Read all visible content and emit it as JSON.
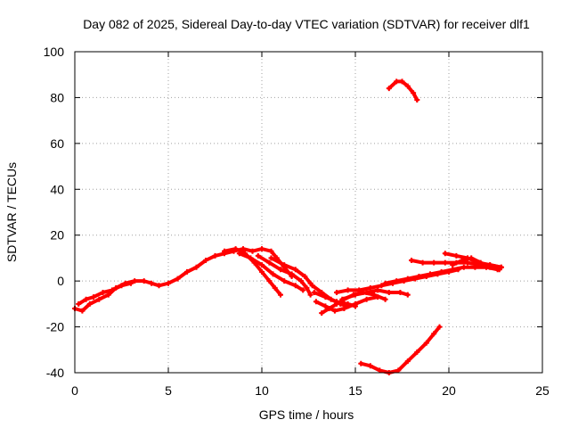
{
  "chart_data": {
    "type": "line",
    "title": "Day 082 of 2025, Sidereal Day-to-day VTEC variation (SDTVAR) for receiver dlf1",
    "xlabel": "GPS time / hours",
    "ylabel": "SDTVAR / TECUs",
    "xlim": [
      0,
      25
    ],
    "ylim": [
      -40,
      100
    ],
    "xticks": [
      0,
      5,
      10,
      15,
      20,
      25
    ],
    "yticks": [
      -40,
      -20,
      0,
      20,
      40,
      60,
      80,
      100
    ],
    "grid": true,
    "legend": "none",
    "color": "#ff0000",
    "series": [
      {
        "name": "track-1",
        "points": [
          [
            0.0,
            -12
          ],
          [
            0.4,
            -13
          ],
          [
            0.8,
            -10
          ],
          [
            1.3,
            -8
          ],
          [
            1.8,
            -6
          ],
          [
            2.2,
            -3
          ],
          [
            2.7,
            -1
          ],
          [
            3.2,
            0
          ],
          [
            3.7,
            0
          ],
          [
            4.1,
            -1
          ],
          [
            4.5,
            -2
          ],
          [
            5.0,
            -1
          ],
          [
            5.5,
            1
          ],
          [
            6.0,
            4
          ],
          [
            6.5,
            6
          ],
          [
            7.0,
            9
          ],
          [
            7.5,
            11
          ],
          [
            8.0,
            12
          ],
          [
            8.5,
            13
          ],
          [
            9.0,
            14
          ],
          [
            9.5,
            13
          ],
          [
            10.0,
            14
          ],
          [
            10.5,
            13
          ],
          [
            10.8,
            10
          ],
          [
            11.2,
            6
          ],
          [
            11.6,
            2
          ]
        ]
      },
      {
        "name": "track-2",
        "points": [
          [
            0.2,
            -10
          ],
          [
            0.6,
            -8
          ],
          [
            1.0,
            -7
          ],
          [
            1.5,
            -5
          ],
          [
            2.0,
            -4
          ],
          [
            2.5,
            -2
          ],
          [
            3.0,
            -1
          ]
        ]
      },
      {
        "name": "track-3",
        "points": [
          [
            8.0,
            13
          ],
          [
            8.6,
            14
          ],
          [
            9.1,
            12
          ],
          [
            9.6,
            8
          ],
          [
            10.0,
            4
          ],
          [
            10.4,
            0
          ],
          [
            10.7,
            -3
          ],
          [
            11.0,
            -6
          ]
        ]
      },
      {
        "name": "track-4",
        "points": [
          [
            8.8,
            12
          ],
          [
            9.4,
            10
          ],
          [
            10.0,
            7
          ],
          [
            10.6,
            3
          ],
          [
            11.2,
            0
          ],
          [
            11.8,
            -2
          ],
          [
            12.2,
            -4
          ]
        ]
      },
      {
        "name": "track-5",
        "points": [
          [
            9.8,
            11
          ],
          [
            10.4,
            8
          ],
          [
            11.0,
            5
          ],
          [
            11.6,
            3
          ],
          [
            12.1,
            0
          ],
          [
            12.4,
            -3
          ],
          [
            12.6,
            -6
          ]
        ]
      },
      {
        "name": "track-6",
        "points": [
          [
            10.5,
            10
          ],
          [
            11.2,
            7
          ],
          [
            11.8,
            5
          ],
          [
            12.3,
            2
          ],
          [
            12.6,
            -1
          ]
        ]
      },
      {
        "name": "track-7",
        "points": [
          [
            12.7,
            -2
          ],
          [
            13.2,
            -5
          ],
          [
            13.7,
            -8
          ],
          [
            14.2,
            -10
          ],
          [
            14.6,
            -11
          ]
        ]
      },
      {
        "name": "track-8",
        "points": [
          [
            12.8,
            -5
          ],
          [
            13.4,
            -7
          ],
          [
            14.0,
            -9
          ],
          [
            14.6,
            -10
          ],
          [
            15.0,
            -11
          ]
        ]
      },
      {
        "name": "track-9",
        "points": [
          [
            12.9,
            -9
          ],
          [
            13.4,
            -11
          ],
          [
            13.9,
            -13
          ],
          [
            14.4,
            -12
          ],
          [
            15.0,
            -10
          ],
          [
            15.6,
            -8
          ],
          [
            16.2,
            -7
          ]
        ]
      },
      {
        "name": "track-10",
        "points": [
          [
            13.2,
            -14
          ],
          [
            13.6,
            -12
          ],
          [
            14.0,
            -10
          ],
          [
            14.4,
            -8
          ],
          [
            14.9,
            -6
          ],
          [
            15.4,
            -5
          ],
          [
            16.0,
            -6
          ],
          [
            16.6,
            -8
          ]
        ]
      },
      {
        "name": "track-11",
        "points": [
          [
            14.0,
            -5
          ],
          [
            14.6,
            -4
          ],
          [
            15.2,
            -4
          ],
          [
            15.8,
            -3
          ],
          [
            16.4,
            -2
          ],
          [
            17.0,
            -1
          ],
          [
            17.6,
            0
          ],
          [
            18.2,
            1
          ],
          [
            18.8,
            2
          ],
          [
            19.4,
            3
          ],
          [
            20.0,
            4
          ],
          [
            20.5,
            5
          ]
        ]
      },
      {
        "name": "track-12",
        "points": [
          [
            14.3,
            -8
          ],
          [
            15.0,
            -6
          ],
          [
            15.6,
            -5
          ],
          [
            16.2,
            -4
          ],
          [
            16.8,
            -5
          ],
          [
            17.4,
            -5
          ],
          [
            17.8,
            -6
          ]
        ]
      },
      {
        "name": "track-13",
        "points": [
          [
            16.6,
            -1
          ],
          [
            17.2,
            0
          ],
          [
            17.8,
            1
          ],
          [
            18.4,
            2
          ],
          [
            19.0,
            3
          ],
          [
            19.6,
            4
          ],
          [
            20.2,
            5
          ],
          [
            20.8,
            6
          ],
          [
            21.4,
            6
          ],
          [
            22.0,
            6
          ],
          [
            22.6,
            5
          ]
        ]
      },
      {
        "name": "track-14",
        "points": [
          [
            18.0,
            9
          ],
          [
            18.6,
            8
          ],
          [
            19.2,
            8
          ],
          [
            19.8,
            8
          ],
          [
            20.4,
            8
          ],
          [
            21.0,
            8
          ],
          [
            21.6,
            7
          ],
          [
            22.2,
            7
          ],
          [
            22.8,
            6
          ]
        ]
      },
      {
        "name": "track-15",
        "points": [
          [
            19.8,
            12
          ],
          [
            20.4,
            11
          ],
          [
            21.0,
            10
          ],
          [
            21.6,
            8
          ],
          [
            22.2,
            7
          ],
          [
            22.8,
            6
          ]
        ]
      },
      {
        "name": "track-16",
        "points": [
          [
            20.2,
            7
          ],
          [
            20.7,
            9
          ],
          [
            21.2,
            10
          ],
          [
            21.7,
            8
          ],
          [
            22.2,
            6
          ],
          [
            22.7,
            5
          ]
        ]
      },
      {
        "name": "track-17",
        "points": [
          [
            16.8,
            84
          ],
          [
            17.2,
            87
          ],
          [
            17.5,
            87
          ],
          [
            17.8,
            85
          ],
          [
            18.1,
            82
          ],
          [
            18.3,
            79
          ]
        ]
      },
      {
        "name": "track-18",
        "points": [
          [
            15.3,
            -36
          ],
          [
            15.8,
            -37
          ],
          [
            16.3,
            -39
          ],
          [
            16.8,
            -40
          ],
          [
            17.3,
            -39
          ],
          [
            17.8,
            -35
          ],
          [
            18.3,
            -31
          ],
          [
            18.8,
            -27
          ],
          [
            19.2,
            -23
          ],
          [
            19.5,
            -20
          ]
        ]
      }
    ]
  }
}
